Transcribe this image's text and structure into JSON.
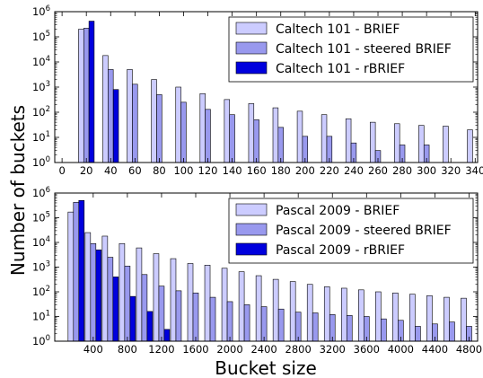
{
  "figure": {
    "ylabel": "Number of buckets",
    "xlabel": "Bucket size"
  },
  "chart_data": [
    {
      "type": "bar",
      "scale": "log",
      "ylim": [
        1,
        1000000
      ],
      "xlim": [
        -6,
        342
      ],
      "xticks": [
        0,
        20,
        40,
        60,
        80,
        100,
        120,
        140,
        160,
        180,
        200,
        220,
        240,
        260,
        280,
        300,
        320,
        340
      ],
      "yticks": [
        {
          "value": 1,
          "label": "10",
          "exp": "0"
        },
        {
          "value": 10,
          "label": "10",
          "exp": "1"
        },
        {
          "value": 100,
          "label": "10",
          "exp": "2"
        },
        {
          "value": 1000,
          "label": "10",
          "exp": "3"
        },
        {
          "value": 10000,
          "label": "10",
          "exp": "4"
        },
        {
          "value": 100000,
          "label": "10",
          "exp": "5"
        },
        {
          "value": 1000000,
          "label": "10",
          "exp": "6"
        }
      ],
      "bar_width": 4.3,
      "legend_position": "top-right",
      "series": [
        {
          "name": "Caltech 101 - BRIEF",
          "color": "#ccccff",
          "offset": -4.3,
          "x": [
            20,
            40,
            60,
            80,
            100,
            120,
            140,
            160,
            180,
            200,
            220,
            240,
            260,
            280,
            300,
            320,
            340
          ],
          "values": [
            200000,
            18000,
            5000,
            2000,
            1000,
            550,
            320,
            220,
            150,
            110,
            80,
            55,
            40,
            35,
            30,
            28,
            20
          ]
        },
        {
          "name": "Caltech 101 - steered BRIEF",
          "color": "#9999ee",
          "offset": 0,
          "x": [
            20,
            40,
            60,
            80,
            100,
            120,
            140,
            160,
            180,
            200,
            220,
            240,
            260,
            280,
            300
          ],
          "values": [
            220000,
            5000,
            1300,
            500,
            250,
            130,
            80,
            50,
            25,
            11,
            11,
            6,
            3,
            5,
            5
          ]
        },
        {
          "name": "Caltech 101 - rBRIEF",
          "color": "#0000dd",
          "offset": 4.3,
          "x": [
            20,
            40
          ],
          "values": [
            420000,
            800
          ]
        }
      ]
    },
    {
      "type": "bar",
      "scale": "log",
      "ylim": [
        1,
        1000000
      ],
      "xlim": [
        -50,
        4900
      ],
      "xticks": [
        400,
        800,
        1200,
        1600,
        2000,
        2400,
        2800,
        3200,
        3600,
        4000,
        4400,
        4800
      ],
      "yticks": [
        {
          "value": 1,
          "label": "10",
          "exp": "0"
        },
        {
          "value": 10,
          "label": "10",
          "exp": "1"
        },
        {
          "value": 100,
          "label": "10",
          "exp": "2"
        },
        {
          "value": 1000,
          "label": "10",
          "exp": "3"
        },
        {
          "value": 10000,
          "label": "10",
          "exp": "4"
        },
        {
          "value": 100000,
          "label": "10",
          "exp": "5"
        },
        {
          "value": 1000000,
          "label": "10",
          "exp": "6"
        }
      ],
      "bar_width": 63,
      "legend_position": "top-right",
      "series": [
        {
          "name": "Pascal 2009 - BRIEF",
          "color": "#ccccff",
          "offset": -63,
          "x": [
            200,
            400,
            600,
            800,
            1000,
            1200,
            1400,
            1600,
            1800,
            2000,
            2200,
            2400,
            2600,
            2800,
            3000,
            3200,
            3400,
            3600,
            3800,
            4000,
            4200,
            4400,
            4600,
            4800
          ],
          "values": [
            170000,
            25000,
            18000,
            9000,
            6000,
            3500,
            2200,
            1400,
            1200,
            900,
            650,
            450,
            320,
            260,
            200,
            160,
            140,
            120,
            100,
            90,
            80,
            70,
            60,
            55
          ]
        },
        {
          "name": "Pascal 2009 - steered BRIEF",
          "color": "#9999ee",
          "offset": 0,
          "x": [
            200,
            400,
            600,
            800,
            1000,
            1200,
            1400,
            1600,
            1800,
            2000,
            2200,
            2400,
            2600,
            2800,
            3000,
            3200,
            3400,
            3600,
            3800,
            4000,
            4200,
            4400,
            4600,
            4800
          ],
          "values": [
            420000,
            9000,
            2500,
            1100,
            500,
            170,
            110,
            90,
            60,
            40,
            30,
            25,
            20,
            15,
            14,
            12,
            11,
            10,
            8,
            7,
            4,
            5,
            6,
            4
          ]
        },
        {
          "name": "Pascal 2009 - rBRIEF",
          "color": "#0000dd",
          "offset": 63,
          "x": [
            200,
            400,
            600,
            800,
            1000,
            1200
          ],
          "values": [
            500000,
            5000,
            400,
            65,
            16,
            3
          ]
        }
      ]
    }
  ]
}
